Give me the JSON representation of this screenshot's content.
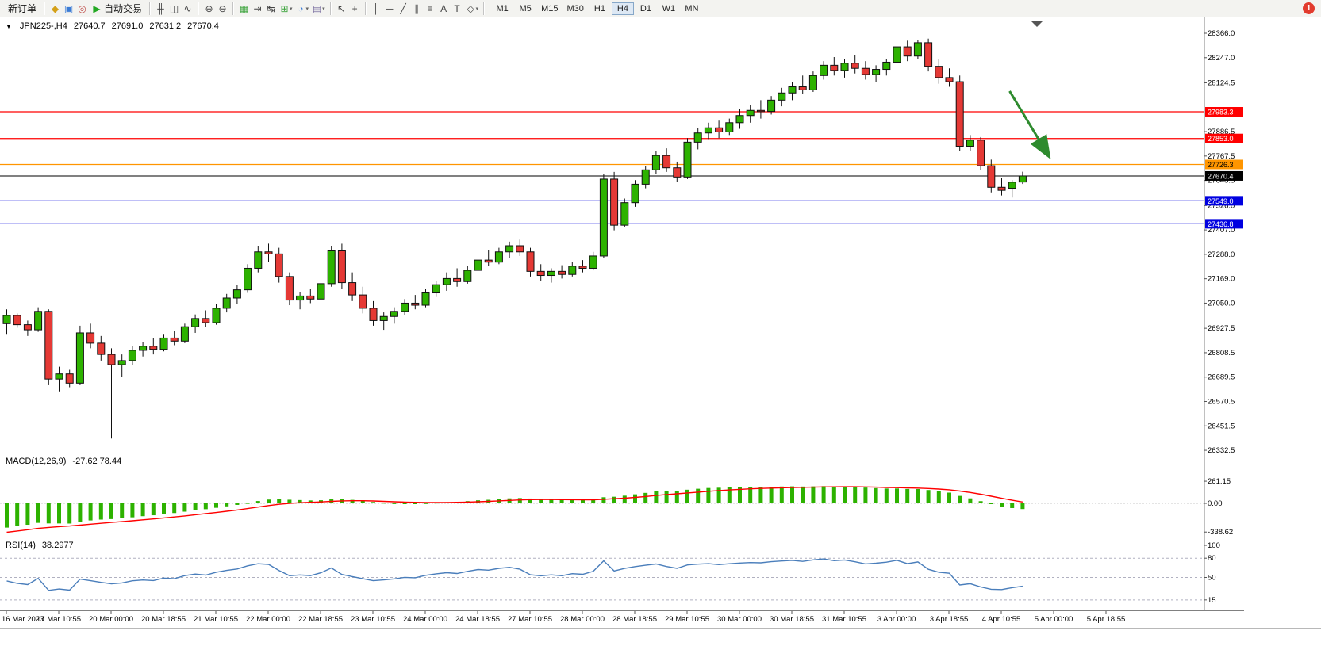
{
  "toolbar": {
    "new_order_label": "新订单",
    "auto_trading_label": "自动交易",
    "timeframes": [
      "M1",
      "M5",
      "M15",
      "M30",
      "H1",
      "H4",
      "D1",
      "W1",
      "MN"
    ],
    "active_timeframe": "H4",
    "notification_count": "1"
  },
  "icons": {
    "collapse": "▼",
    "dropdown": "▾",
    "metaeditor": "◆",
    "market": "▣",
    "community": "◎",
    "algo_play": "▶",
    "chart_bars": "╫",
    "chart_candles": "◫",
    "chart_line": "∿",
    "zoom_in": "⊕",
    "zoom_out": "⊖",
    "tile_windows": "▦",
    "auto_scroll": "⇥",
    "chart_shift": "↹",
    "indicators": "⊞",
    "periods": "◔",
    "templates": "▤",
    "cursor": "↖",
    "crosshair": "+",
    "vline": "│",
    "hline": "─",
    "trendline": "╱",
    "channel": "∥",
    "fibonacci": "≡",
    "text_tool": "A",
    "label_tool": "T",
    "shapes": "◇"
  },
  "chart_data": {
    "type": "candlestick",
    "symbol_period": "JPN225-,H4",
    "ohlc_display": {
      "open": "27640.7",
      "high": "27691.0",
      "low": "27631.2",
      "close": "27670.4"
    },
    "y_axis_labels": [
      "28366.0",
      "28247.0",
      "28124.5",
      "27886.5",
      "27767.5",
      "27648.5",
      "27526.0",
      "27407.0",
      "27288.0",
      "27169.0",
      "27050.0",
      "26927.5",
      "26808.5",
      "26689.5",
      "26570.5",
      "26451.5",
      "26332.5"
    ],
    "x_axis_labels": [
      "16 Mar 2023",
      "17 Mar 10:55",
      "20 Mar 00:00",
      "20 Mar 18:55",
      "21 Mar 10:55",
      "22 Mar 00:00",
      "22 Mar 18:55",
      "23 Mar 10:55",
      "24 Mar 00:00",
      "24 Mar 18:55",
      "27 Mar 10:55",
      "28 Mar 00:00",
      "28 Mar 18:55",
      "29 Mar 10:55",
      "30 Mar 00:00",
      "30 Mar 18:55",
      "31 Mar 10:55",
      "3 Apr 00:00",
      "3 Apr 18:55",
      "4 Apr 10:55",
      "5 Apr 00:00",
      "5 Apr 18:55"
    ],
    "candles": [
      [
        26950,
        27020,
        26900,
        26990
      ],
      [
        26990,
        27000,
        26930,
        26945
      ],
      [
        26945,
        26965,
        26890,
        26920
      ],
      [
        26920,
        27030,
        26910,
        27010
      ],
      [
        27010,
        27020,
        26650,
        26680
      ],
      [
        26680,
        26740,
        26620,
        26705
      ],
      [
        26705,
        26725,
        26640,
        26660
      ],
      [
        26660,
        26940,
        26650,
        26905
      ],
      [
        26905,
        26950,
        26830,
        26855
      ],
      [
        26855,
        26890,
        26770,
        26800
      ],
      [
        26800,
        26830,
        26390,
        26750
      ],
      [
        26750,
        26800,
        26690,
        26770
      ],
      [
        26770,
        26840,
        26750,
        26820
      ],
      [
        26820,
        26860,
        26790,
        26840
      ],
      [
        26840,
        26880,
        26800,
        26825
      ],
      [
        26825,
        26900,
        26815,
        26880
      ],
      [
        26880,
        26915,
        26845,
        26865
      ],
      [
        26865,
        26950,
        26855,
        26935
      ],
      [
        26935,
        26995,
        26905,
        26975
      ],
      [
        26975,
        27015,
        26935,
        26955
      ],
      [
        26955,
        27045,
        26945,
        27025
      ],
      [
        27025,
        27095,
        27005,
        27075
      ],
      [
        27075,
        27140,
        27045,
        27115
      ],
      [
        27115,
        27240,
        27100,
        27220
      ],
      [
        27220,
        27330,
        27200,
        27300
      ],
      [
        27300,
        27340,
        27250,
        27290
      ],
      [
        27290,
        27320,
        27150,
        27180
      ],
      [
        27180,
        27200,
        27040,
        27065
      ],
      [
        27065,
        27105,
        27020,
        27085
      ],
      [
        27085,
        27120,
        27050,
        27070
      ],
      [
        27070,
        27165,
        27055,
        27145
      ],
      [
        27145,
        27330,
        27130,
        27305
      ],
      [
        27305,
        27340,
        27120,
        27150
      ],
      [
        27150,
        27200,
        27060,
        27090
      ],
      [
        27090,
        27130,
        27000,
        27025
      ],
      [
        27025,
        27060,
        26940,
        26965
      ],
      [
        26965,
        27005,
        26920,
        26985
      ],
      [
        26985,
        27030,
        26950,
        27010
      ],
      [
        27010,
        27070,
        26990,
        27050
      ],
      [
        27050,
        27090,
        27020,
        27040
      ],
      [
        27040,
        27120,
        27030,
        27100
      ],
      [
        27100,
        27160,
        27080,
        27140
      ],
      [
        27140,
        27200,
        27110,
        27170
      ],
      [
        27170,
        27220,
        27130,
        27155
      ],
      [
        27155,
        27230,
        27145,
        27210
      ],
      [
        27210,
        27280,
        27190,
        27260
      ],
      [
        27260,
        27310,
        27230,
        27250
      ],
      [
        27250,
        27320,
        27240,
        27300
      ],
      [
        27300,
        27350,
        27270,
        27330
      ],
      [
        27330,
        27360,
        27280,
        27300
      ],
      [
        27300,
        27320,
        27180,
        27205
      ],
      [
        27205,
        27240,
        27160,
        27185
      ],
      [
        27185,
        27220,
        27150,
        27205
      ],
      [
        27205,
        27235,
        27170,
        27190
      ],
      [
        27190,
        27250,
        27180,
        27230
      ],
      [
        27230,
        27260,
        27200,
        27220
      ],
      [
        27220,
        27300,
        27210,
        27280
      ],
      [
        27280,
        27680,
        27270,
        27655
      ],
      [
        27655,
        27690,
        27405,
        27430
      ],
      [
        27430,
        27560,
        27420,
        27540
      ],
      [
        27540,
        27650,
        27520,
        27630
      ],
      [
        27630,
        27720,
        27610,
        27700
      ],
      [
        27700,
        27790,
        27680,
        27770
      ],
      [
        27770,
        27805,
        27690,
        27710
      ],
      [
        27710,
        27740,
        27640,
        27665
      ],
      [
        27665,
        27855,
        27655,
        27835
      ],
      [
        27835,
        27905,
        27800,
        27880
      ],
      [
        27880,
        27930,
        27850,
        27905
      ],
      [
        27905,
        27940,
        27855,
        27885
      ],
      [
        27885,
        27950,
        27870,
        27930
      ],
      [
        27930,
        27995,
        27900,
        27965
      ],
      [
        27965,
        28015,
        27930,
        27990
      ],
      [
        27990,
        28040,
        27950,
        27985
      ],
      [
        27985,
        28060,
        27970,
        28040
      ],
      [
        28040,
        28100,
        28010,
        28075
      ],
      [
        28075,
        28130,
        28040,
        28105
      ],
      [
        28105,
        28160,
        28070,
        28090
      ],
      [
        28090,
        28180,
        28080,
        28160
      ],
      [
        28160,
        28230,
        28140,
        28210
      ],
      [
        28210,
        28250,
        28160,
        28185
      ],
      [
        28185,
        28240,
        28150,
        28220
      ],
      [
        28220,
        28260,
        28170,
        28195
      ],
      [
        28195,
        28230,
        28140,
        28165
      ],
      [
        28165,
        28210,
        28130,
        28190
      ],
      [
        28190,
        28240,
        28160,
        28225
      ],
      [
        28225,
        28320,
        28210,
        28300
      ],
      [
        28300,
        28330,
        28230,
        28255
      ],
      [
        28255,
        28335,
        28240,
        28320
      ],
      [
        28320,
        28340,
        28180,
        28205
      ],
      [
        28205,
        28240,
        28120,
        28150
      ],
      [
        28150,
        28195,
        28105,
        28130
      ],
      [
        28130,
        28160,
        27790,
        27815
      ],
      [
        27815,
        27870,
        27790,
        27845
      ],
      [
        27845,
        27860,
        27700,
        27720
      ],
      [
        27720,
        27750,
        27590,
        27615
      ],
      [
        27615,
        27660,
        27575,
        27600
      ],
      [
        27610,
        27650,
        27565,
        27640
      ],
      [
        27640.7,
        27691.0,
        27631.2,
        27670.4
      ]
    ],
    "h_lines": [
      {
        "price": 27983.3,
        "label": "27983.3",
        "color": "#FF0000"
      },
      {
        "price": 27853.0,
        "label": "27853.0",
        "color": "#FF0000"
      },
      {
        "price": 27726.3,
        "label": "27726.3",
        "color": "#FF9500"
      },
      {
        "price": 27549.0,
        "label": "27549.0",
        "color": "#0000E0"
      },
      {
        "price": 27436.8,
        "label": "27436.8",
        "color": "#0000E0"
      }
    ],
    "bid_line": {
      "price": 27670.4,
      "label": "27670.4",
      "color": "#000000"
    },
    "annotation_arrow": {
      "from": {
        "slot": 96.1,
        "price": 28084
      },
      "to": {
        "slot": 99.8,
        "price": 27771
      },
      "color": "#2E8B2E"
    },
    "macd": {
      "label": "MACD(12,26,9)",
      "values_text": "-27.62 78.44",
      "params": [
        12,
        26,
        9
      ],
      "axis_labels": [
        "261.15",
        "0.00",
        "-338.62"
      ],
      "axis_values": [
        261.15,
        0,
        -338.62
      ]
    },
    "rsi": {
      "label": "RSI(14)",
      "value_text": "38.2977",
      "period": 14,
      "axis_labels": [
        "100",
        "80",
        "50",
        "15"
      ],
      "axis_values": [
        100,
        80,
        50,
        15
      ],
      "levels": [
        80,
        50,
        15
      ]
    }
  },
  "colors": {
    "bull": "#2DB200",
    "bear": "#E53935",
    "wick": "#111111",
    "candle_outline": "#111111",
    "macd_hist": "#2DB200",
    "macd_signal": "#FF0000",
    "rsi_line": "#4A7EBB",
    "axis_line": "#808080",
    "arrow": "#2E8B2E"
  }
}
